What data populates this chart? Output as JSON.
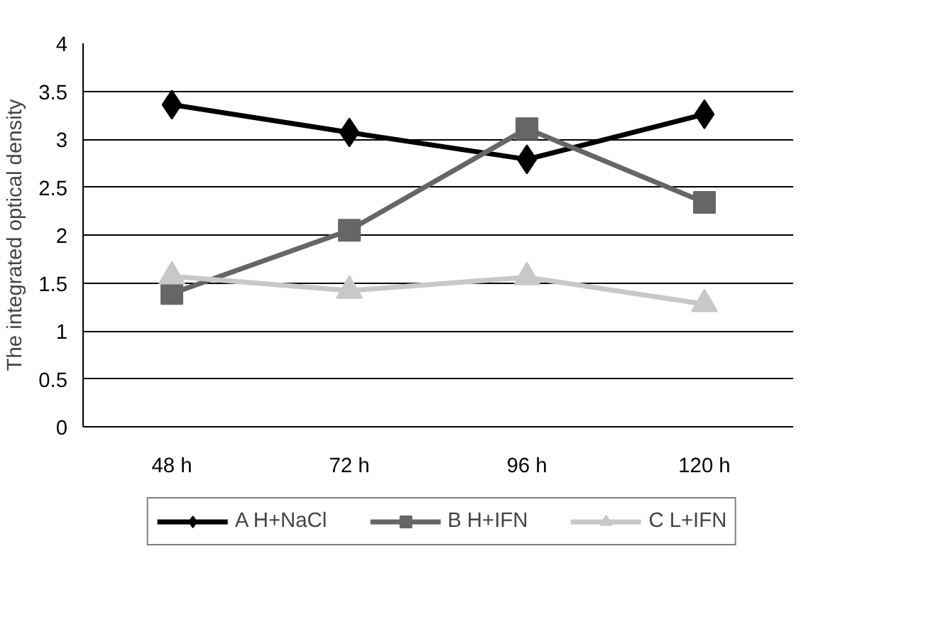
{
  "chart_data": {
    "type": "line",
    "ylabel": "The integrated optical density",
    "categories": [
      "48 h",
      "72 h",
      "96 h",
      "120 h"
    ],
    "series": [
      {
        "name": "A H+NaCl",
        "color": "#000000",
        "marker": "diamond",
        "values": [
          3.36,
          3.07,
          2.79,
          3.26
        ]
      },
      {
        "name": "B H+IFN",
        "color": "#666666",
        "marker": "square",
        "values": [
          1.39,
          2.05,
          3.11,
          2.34
        ]
      },
      {
        "name": "C L+IFN",
        "color": "#c8c8c8",
        "marker": "triangle",
        "values": [
          1.57,
          1.42,
          1.56,
          1.28
        ]
      }
    ],
    "ylim": [
      0,
      4
    ],
    "yticks": [
      0,
      0.5,
      1,
      1.5,
      2,
      2.5,
      3,
      3.5,
      4
    ],
    "grid": "y",
    "legend": "bottom"
  }
}
